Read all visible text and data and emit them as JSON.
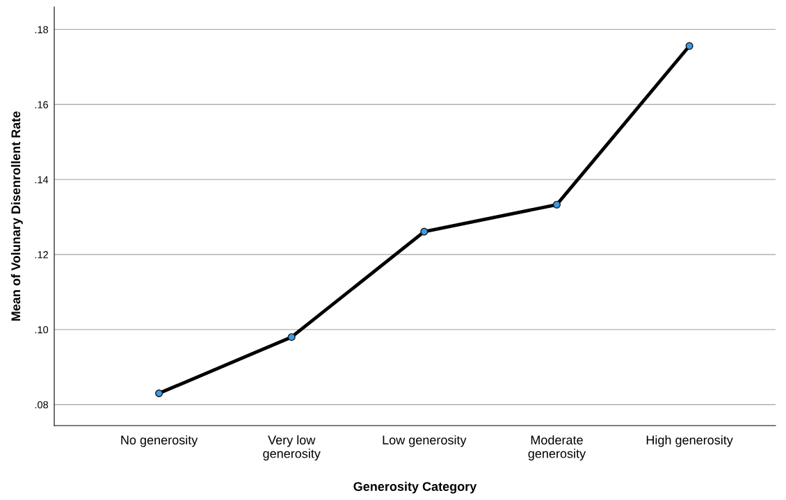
{
  "chart_data": {
    "type": "line",
    "xlabel": "Generosity Category",
    "ylabel": "Mean of Volunary Disenrollent Rate",
    "categories": [
      "No generosity",
      "Very low\ngenerosity",
      "Low generosity",
      "Moderate\ngenerosity",
      "High generosity"
    ],
    "series": [
      {
        "color": "#000000",
        "colors": [
          "#3a9be6",
          "#3a9be6",
          "#3a9be6",
          "#3a9be6",
          "#3a9be6"
        ],
        "values": [
          0.083,
          0.098,
          0.1261,
          0.1333,
          0.1756
        ]
      }
    ],
    "ylim": [
      0.0744,
      0.186
    ],
    "yticks": [
      {
        "value": 0.08,
        "label": ".08"
      },
      {
        "value": 0.1,
        "label": ".10"
      },
      {
        "value": 0.12,
        "label": ".12"
      },
      {
        "value": 0.14,
        "label": ".14"
      },
      {
        "value": 0.16,
        "label": ".16"
      },
      {
        "value": 0.18,
        "label": ".18"
      }
    ],
    "grid": "y",
    "marker": "circle",
    "line_style": "solid",
    "legend": false
  }
}
